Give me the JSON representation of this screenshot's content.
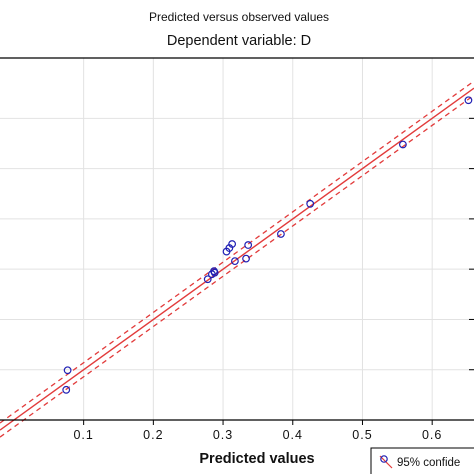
{
  "chart_data": {
    "type": "scatter",
    "title": "Predicted versus observed values",
    "subtitle": "Dependent variable: D",
    "xlabel": "Predicted values",
    "ylabel": "",
    "xlim": [
      -0.02,
      0.66
    ],
    "ylim": [
      0.0,
      0.72
    ],
    "xticks": [
      0.1,
      0.2,
      0.3,
      0.4,
      0.5,
      0.6
    ],
    "xtick_labels": [
      "0.1",
      "0.2",
      "0.3",
      "0.4",
      "0.5",
      "0.6"
    ],
    "yticks": [
      0.1,
      0.2,
      0.3,
      0.4,
      0.5,
      0.6
    ],
    "grid": true,
    "legend_position": "bottom-right",
    "legend_label": "95% confide",
    "points": [
      {
        "x": 0.075,
        "y": 0.06
      },
      {
        "x": 0.077,
        "y": 0.099
      },
      {
        "x": 0.278,
        "y": 0.28
      },
      {
        "x": 0.284,
        "y": 0.29
      },
      {
        "x": 0.287,
        "y": 0.296
      },
      {
        "x": 0.288,
        "y": 0.293
      },
      {
        "x": 0.305,
        "y": 0.335
      },
      {
        "x": 0.309,
        "y": 0.342
      },
      {
        "x": 0.313,
        "y": 0.35
      },
      {
        "x": 0.317,
        "y": 0.316
      },
      {
        "x": 0.333,
        "y": 0.321
      },
      {
        "x": 0.336,
        "y": 0.348
      },
      {
        "x": 0.383,
        "y": 0.37
      },
      {
        "x": 0.425,
        "y": 0.43
      },
      {
        "x": 0.558,
        "y": 0.548
      },
      {
        "x": 0.652,
        "y": 0.636
      }
    ],
    "fit_line": {
      "slope": 1.0,
      "intercept": 0.0
    },
    "confidence_band": 0.014,
    "colors": {
      "points": "#1f1fb4",
      "fit": "#e23b3b",
      "frame": "#000000",
      "grid": "#e2e2e2"
    }
  }
}
